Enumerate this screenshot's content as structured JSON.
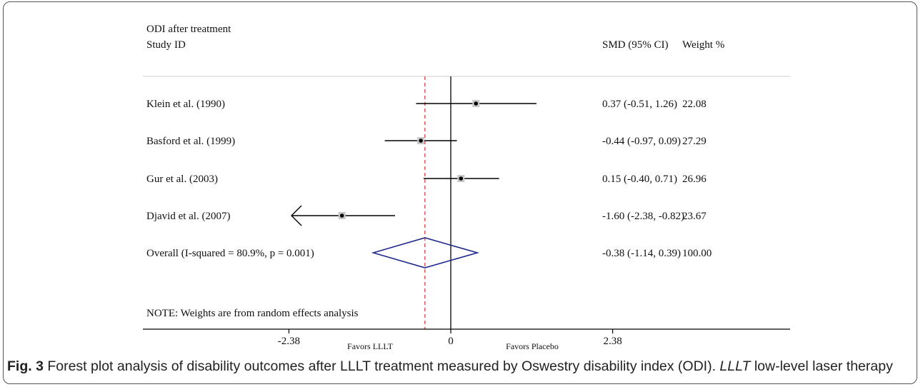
{
  "header": {
    "outcome": "ODI after treatment",
    "study_label": "Study",
    "id_label": "ID",
    "smd_label": "SMD (95% CI)",
    "weight_label": "Weight %"
  },
  "chart_data": {
    "type": "forest",
    "x_ticks": [
      -2.38,
      0,
      2.38
    ],
    "x_tick_labels": [
      "-2.38",
      "0",
      "2.38"
    ],
    "xlim": [
      -2.38,
      2.38
    ],
    "reference_line": 0,
    "overall_line": -0.38,
    "favors_left": "Favors LLLT",
    "favors_right": "Favors Placebo",
    "studies": [
      {
        "label": "Klein et al. (1990)",
        "smd": 0.37,
        "lo": -0.51,
        "hi": 1.26,
        "ci_text": "0.37 (-0.51, 1.26)",
        "weight": "22.08"
      },
      {
        "label": "Basford et al. (1999)",
        "smd": -0.44,
        "lo": -0.97,
        "hi": 0.09,
        "ci_text": "-0.44 (-0.97, 0.09)",
        "weight": "27.29"
      },
      {
        "label": "Gur et al. (2003)",
        "smd": 0.15,
        "lo": -0.4,
        "hi": 0.71,
        "ci_text": "0.15 (-0.40, 0.71)",
        "weight": "26.96"
      },
      {
        "label": "Djavid et al. (2007)",
        "smd": -1.6,
        "lo": -2.38,
        "hi": -0.82,
        "ci_text": "-1.60 (-2.38, -0.82)",
        "weight": "23.67",
        "arrow_left": true
      }
    ],
    "overall": {
      "label": "Overall  (I-squared = 80.9%, p = 0.001)",
      "smd": -0.38,
      "lo": -1.14,
      "hi": 0.39,
      "ci_text": "-0.38 (-1.14, 0.39)",
      "weight": "100.00"
    },
    "note": "NOTE: Weights are from random effects analysis",
    "colors": {
      "diamond": "#1f2a8c",
      "overall_line": "#cc3333",
      "lines": "#000000"
    }
  },
  "caption": {
    "fig_label": "Fig. 3",
    "text": " Forest plot analysis of disability outcomes after LLLT treatment measured by Oswestry disability index (ODI). ",
    "abbr": "LLLT",
    "abbr_def": " low-level laser therapy"
  }
}
